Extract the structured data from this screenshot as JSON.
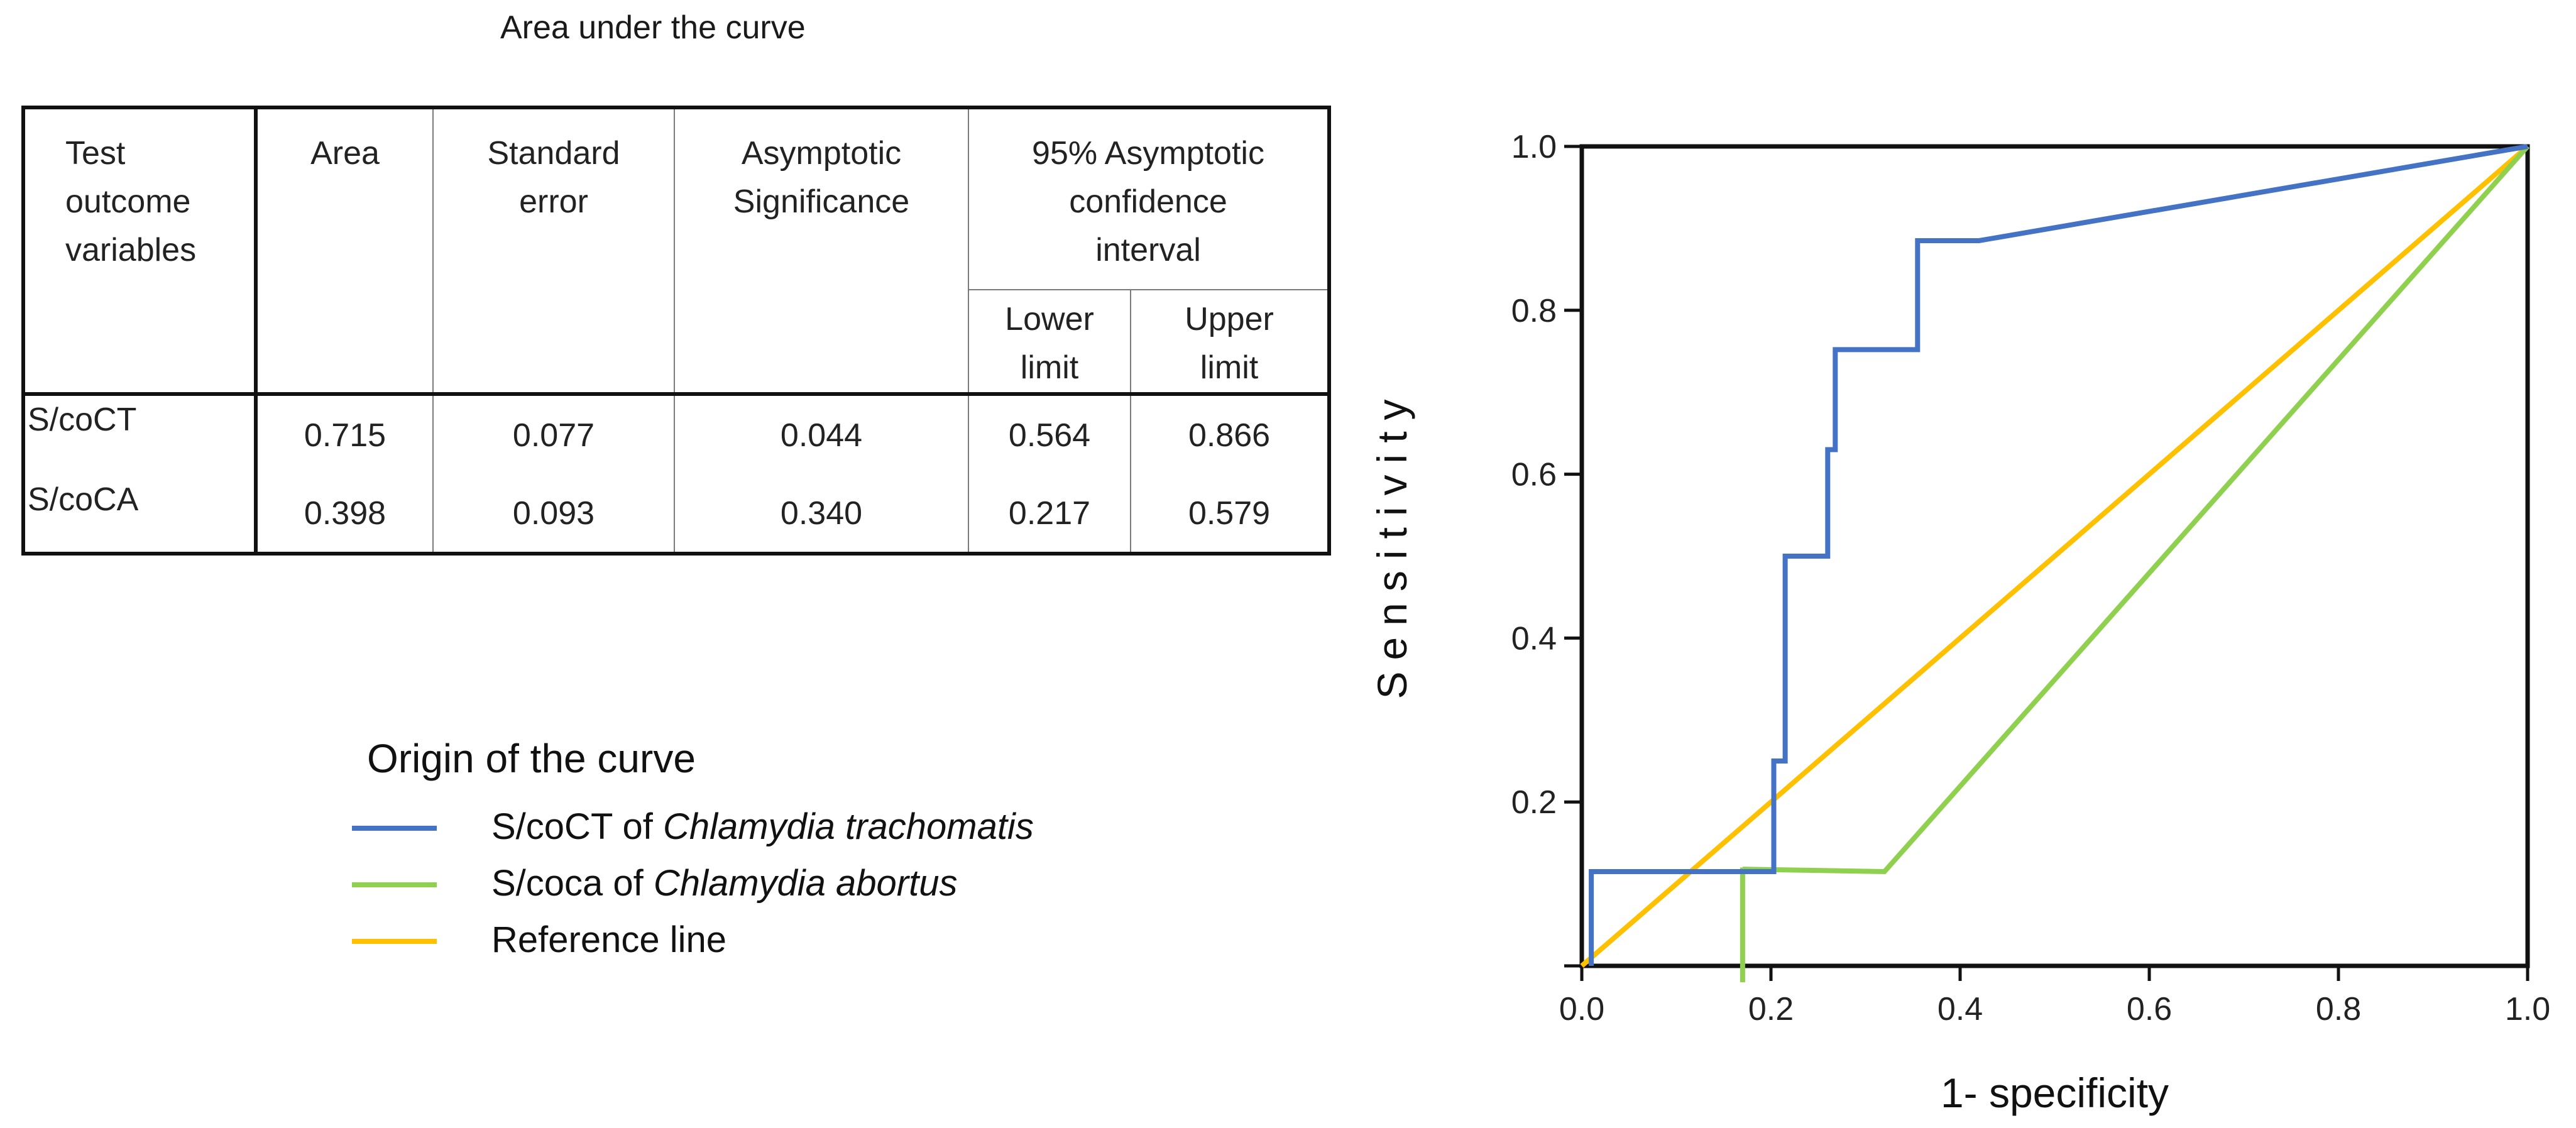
{
  "table": {
    "title": "Area under the curve",
    "headers": {
      "variable": [
        "Test",
        "outcome",
        "variables"
      ],
      "area": "Area",
      "std_error": [
        "Standard",
        "error"
      ],
      "significance": [
        "Asymptotic",
        "Significance"
      ],
      "ci": [
        "95% Asymptotic",
        "confidence",
        "interval"
      ],
      "lower": [
        "Lower",
        "limit"
      ],
      "upper": [
        "Upper",
        "limit"
      ]
    },
    "rows": [
      {
        "label": "S/coCT",
        "area": "0.715",
        "std_error": "0.077",
        "significance": "0.044",
        "lower": "0.564",
        "upper": "0.866"
      },
      {
        "label": "S/coCA",
        "area": "0.398",
        "std_error": "0.093",
        "significance": "0.340",
        "lower": "0.217",
        "upper": "0.579"
      }
    ]
  },
  "legend": {
    "title": "Origin of the curve",
    "items": [
      {
        "prefix": "S/coCT of ",
        "italic": "Chlamydia trachomatis",
        "color": "#4472c4"
      },
      {
        "prefix": "S/coca of ",
        "italic": "Chlamydia abortus",
        "color": "#8fd14f"
      },
      {
        "prefix": "Reference line",
        "italic": "",
        "color": "#ffc000"
      }
    ]
  },
  "chart_data": {
    "type": "line",
    "title": "",
    "xlabel": "1- specificity",
    "ylabel": "Sensitivity",
    "xlim": [
      0,
      1
    ],
    "ylim": [
      0,
      1
    ],
    "x_ticks": [
      "0.0",
      "0.2",
      "0.4",
      "0.6",
      "0.8",
      "1.0"
    ],
    "y_ticks": [
      "0.2",
      "0.4",
      "0.6",
      "0.8",
      "1.0"
    ],
    "grid": false,
    "series": [
      {
        "name": "S/coCT of Chlamydia trachomatis",
        "color": "#4472c4",
        "points": [
          [
            0.01,
            0.0
          ],
          [
            0.01,
            0.115
          ],
          [
            0.203,
            0.115
          ],
          [
            0.203,
            0.25
          ],
          [
            0.215,
            0.25
          ],
          [
            0.215,
            0.5
          ],
          [
            0.26,
            0.5
          ],
          [
            0.26,
            0.63
          ],
          [
            0.268,
            0.63
          ],
          [
            0.268,
            0.752
          ],
          [
            0.355,
            0.752
          ],
          [
            0.355,
            0.885
          ],
          [
            0.42,
            0.885
          ],
          [
            1.0,
            1.0
          ]
        ]
      },
      {
        "name": "S/coca of Chlamydia abortus",
        "color": "#8fd14f",
        "points": [
          [
            0.17,
            -0.02
          ],
          [
            0.17,
            0.12
          ],
          [
            0.17,
            0.118
          ],
          [
            0.32,
            0.115
          ],
          [
            1.0,
            1.0
          ]
        ]
      },
      {
        "name": "Reference line",
        "color": "#ffc000",
        "points": [
          [
            0.0,
            0.0
          ],
          [
            1.0,
            1.0
          ]
        ]
      }
    ]
  }
}
